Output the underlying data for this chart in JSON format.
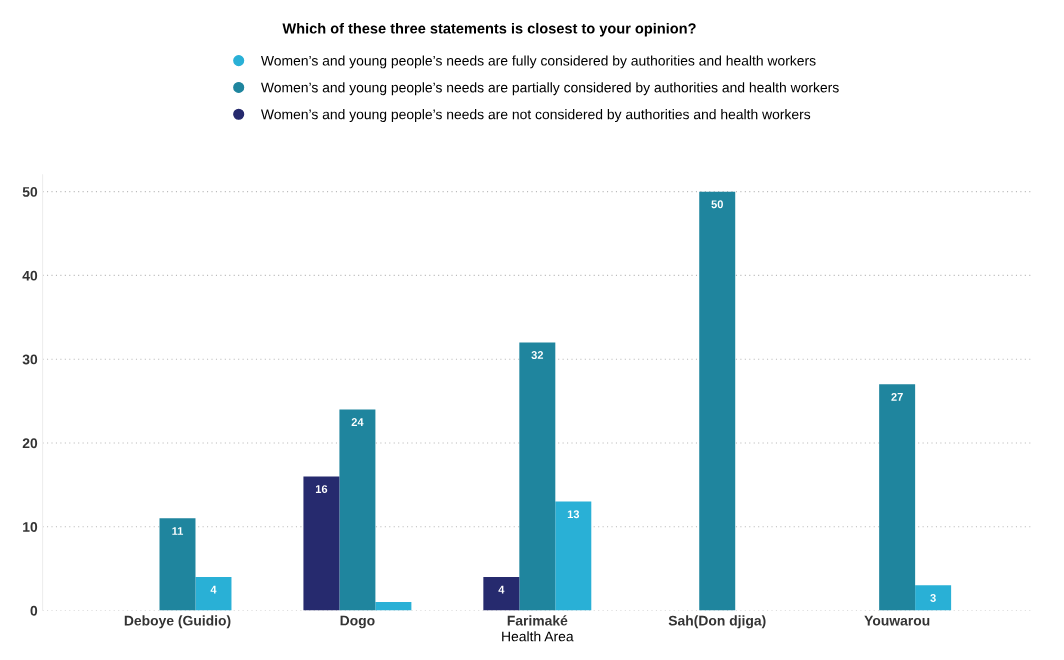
{
  "chart_data": {
    "type": "bar",
    "title": "Which of these three statements is closest to your opinion?",
    "xlabel": "Health Area",
    "categories": [
      "Deboye (Guidio)",
      "Dogo",
      "Farimaké",
      "Sah(Don djiga)",
      "Youwarou"
    ],
    "series": [
      {
        "name": "Women’s and young people’s needs are fully considered by authorities and health workers",
        "color": "#29b0d6",
        "values": [
          4,
          1,
          13,
          null,
          3
        ],
        "value_labels": [
          "4",
          null,
          "13",
          null,
          "3"
        ]
      },
      {
        "name": "Women’s and young people’s needs are partially considered by authorities and health workers",
        "color": "#1f859e",
        "values": [
          11,
          24,
          32,
          50,
          27
        ],
        "value_labels": [
          "11",
          "24",
          "32",
          "50",
          "27"
        ]
      },
      {
        "name": "Women’s and young people’s needs are not considered by authorities and health workers",
        "color": "#262a6e",
        "values": [
          null,
          16,
          4,
          null,
          null
        ],
        "value_labels": [
          null,
          "16",
          "4",
          null,
          null
        ]
      }
    ],
    "ylim": [
      0,
      52
    ],
    "yticks": [
      0,
      10,
      20,
      30,
      40,
      50
    ],
    "grid": "y",
    "legend": "top"
  }
}
